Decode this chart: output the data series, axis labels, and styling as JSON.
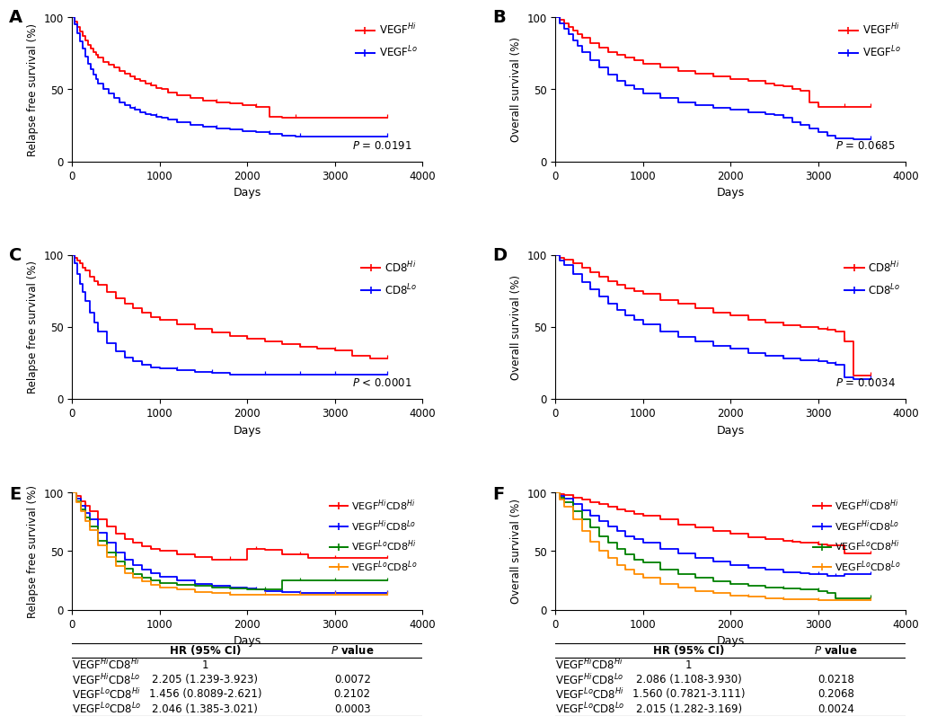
{
  "colors": {
    "red": "#FF0000",
    "blue": "#0000FF",
    "green": "#008000",
    "orange": "#FF8C00"
  },
  "panel_A": {
    "panel_label": "A",
    "ylabel": "Relapse free survival (%)",
    "xlabel": "Days",
    "pvalue": "P = 0.0191",
    "legend_labels": [
      "VEGF$^{Hi}$",
      "VEGF$^{Lo}$"
    ],
    "legend_colors": [
      "red",
      "blue"
    ],
    "ylim": [
      0,
      100
    ],
    "xlim": [
      0,
      4000
    ],
    "xticks": [
      0,
      1000,
      2000,
      3000,
      4000
    ],
    "yticks": [
      0,
      50,
      100
    ],
    "curves": [
      {
        "color": "red",
        "x": [
          0,
          30,
          60,
          90,
          120,
          150,
          180,
          210,
          240,
          270,
          300,
          360,
          420,
          480,
          540,
          600,
          660,
          720,
          780,
          840,
          900,
          960,
          1020,
          1100,
          1200,
          1350,
          1500,
          1650,
          1800,
          1950,
          2100,
          2250,
          2400,
          2550,
          2700,
          3000,
          3300,
          3600
        ],
        "y": [
          100,
          97,
          93,
          90,
          87,
          84,
          81,
          78,
          76,
          74,
          72,
          69,
          67,
          65,
          63,
          61,
          59,
          57,
          56,
          54,
          53,
          51,
          50,
          48,
          46,
          44,
          42,
          41,
          40,
          39,
          38,
          31,
          30,
          30,
          30,
          30,
          30,
          30
        ]
      },
      {
        "color": "blue",
        "x": [
          0,
          30,
          60,
          90,
          120,
          150,
          180,
          210,
          240,
          270,
          300,
          360,
          420,
          480,
          540,
          600,
          660,
          720,
          780,
          840,
          900,
          960,
          1020,
          1100,
          1200,
          1350,
          1500,
          1650,
          1800,
          1950,
          2100,
          2250,
          2400,
          2550,
          2600,
          2700,
          2800,
          3000,
          3600
        ],
        "y": [
          100,
          95,
          89,
          83,
          78,
          73,
          68,
          64,
          60,
          57,
          54,
          50,
          47,
          44,
          41,
          39,
          37,
          36,
          34,
          33,
          32,
          31,
          30,
          29,
          27,
          25,
          24,
          23,
          22,
          21,
          20,
          19,
          18,
          17,
          17,
          17,
          17,
          17,
          17
        ]
      }
    ]
  },
  "panel_B": {
    "panel_label": "B",
    "ylabel": "Overall survival (%)",
    "xlabel": "Days",
    "pvalue": "P = 0.0685",
    "legend_labels": [
      "VEGF$^{Hi}$",
      "VEGF$^{Lo}$"
    ],
    "legend_colors": [
      "red",
      "blue"
    ],
    "ylim": [
      0,
      100
    ],
    "xlim": [
      0,
      4000
    ],
    "xticks": [
      0,
      1000,
      2000,
      3000,
      4000
    ],
    "yticks": [
      0,
      50,
      100
    ],
    "curves": [
      {
        "color": "red",
        "x": [
          0,
          50,
          100,
          150,
          200,
          250,
          300,
          400,
          500,
          600,
          700,
          800,
          900,
          1000,
          1200,
          1400,
          1600,
          1800,
          2000,
          2200,
          2400,
          2500,
          2600,
          2700,
          2800,
          2900,
          3000,
          3100,
          3200,
          3300,
          3400,
          3500,
          3600
        ],
        "y": [
          100,
          98,
          96,
          93,
          91,
          88,
          86,
          82,
          79,
          76,
          74,
          72,
          70,
          68,
          65,
          63,
          61,
          59,
          57,
          56,
          54,
          53,
          52,
          50,
          49,
          41,
          38,
          38,
          38,
          38,
          38,
          38,
          38
        ]
      },
      {
        "color": "blue",
        "x": [
          0,
          50,
          100,
          150,
          200,
          250,
          300,
          400,
          500,
          600,
          700,
          800,
          900,
          1000,
          1200,
          1400,
          1600,
          1800,
          2000,
          2200,
          2400,
          2500,
          2600,
          2700,
          2800,
          2900,
          3000,
          3100,
          3200,
          3400,
          3600
        ],
        "y": [
          100,
          96,
          92,
          88,
          84,
          80,
          76,
          70,
          65,
          60,
          56,
          53,
          50,
          47,
          44,
          41,
          39,
          37,
          36,
          34,
          33,
          32,
          30,
          27,
          25,
          23,
          20,
          18,
          16,
          15,
          15
        ]
      }
    ]
  },
  "panel_C": {
    "panel_label": "C",
    "ylabel": "Relapse free survival (%)",
    "xlabel": "Days",
    "pvalue": "P < 0.0001",
    "legend_labels": [
      "CD8$^{Hi}$",
      "CD8$^{Lo}$"
    ],
    "legend_colors": [
      "red",
      "blue"
    ],
    "ylim": [
      0,
      100
    ],
    "xlim": [
      0,
      4000
    ],
    "xticks": [
      0,
      1000,
      2000,
      3000,
      4000
    ],
    "yticks": [
      0,
      50,
      100
    ],
    "curves": [
      {
        "color": "red",
        "x": [
          0,
          30,
          60,
          90,
          120,
          150,
          200,
          250,
          300,
          400,
          500,
          600,
          700,
          800,
          900,
          1000,
          1200,
          1400,
          1600,
          1800,
          2000,
          2200,
          2400,
          2600,
          2800,
          3000,
          3200,
          3400,
          3600
        ],
        "y": [
          100,
          98,
          96,
          94,
          91,
          89,
          85,
          82,
          79,
          74,
          70,
          66,
          63,
          60,
          57,
          55,
          52,
          49,
          46,
          44,
          42,
          40,
          38,
          36,
          35,
          34,
          30,
          28,
          28
        ]
      },
      {
        "color": "blue",
        "x": [
          0,
          30,
          60,
          90,
          120,
          150,
          200,
          250,
          300,
          400,
          500,
          600,
          700,
          800,
          900,
          1000,
          1200,
          1400,
          1600,
          1800,
          2000,
          2200,
          2400,
          2600,
          2700,
          2800,
          3000,
          3200,
          3400,
          3600
        ],
        "y": [
          100,
          94,
          87,
          80,
          74,
          68,
          60,
          53,
          47,
          39,
          33,
          29,
          26,
          24,
          22,
          21,
          20,
          19,
          18,
          17,
          17,
          17,
          17,
          17,
          17,
          17,
          17,
          17,
          17,
          17
        ]
      }
    ]
  },
  "panel_D": {
    "panel_label": "D",
    "ylabel": "Overall survival (%)",
    "xlabel": "Days",
    "pvalue": "P = 0.0034",
    "legend_labels": [
      "CD8$^{Hi}$",
      "CD8$^{Lo}$"
    ],
    "legend_colors": [
      "red",
      "blue"
    ],
    "ylim": [
      0,
      100
    ],
    "xlim": [
      0,
      4000
    ],
    "xticks": [
      0,
      1000,
      2000,
      3000,
      4000
    ],
    "yticks": [
      0,
      50,
      100
    ],
    "curves": [
      {
        "color": "red",
        "x": [
          0,
          50,
          100,
          200,
          300,
          400,
          500,
          600,
          700,
          800,
          900,
          1000,
          1200,
          1400,
          1600,
          1800,
          2000,
          2200,
          2400,
          2600,
          2800,
          3000,
          3100,
          3200,
          3300,
          3400,
          3500,
          3600
        ],
        "y": [
          100,
          98,
          97,
          94,
          91,
          88,
          85,
          82,
          79,
          77,
          75,
          73,
          69,
          66,
          63,
          60,
          58,
          55,
          53,
          51,
          50,
          49,
          48,
          47,
          40,
          16,
          16,
          16
        ]
      },
      {
        "color": "blue",
        "x": [
          0,
          50,
          100,
          200,
          300,
          400,
          500,
          600,
          700,
          800,
          900,
          1000,
          1200,
          1400,
          1600,
          1800,
          2000,
          2200,
          2400,
          2600,
          2800,
          3000,
          3100,
          3200,
          3300,
          3400,
          3600
        ],
        "y": [
          100,
          96,
          93,
          87,
          81,
          76,
          71,
          66,
          62,
          58,
          55,
          52,
          47,
          43,
          40,
          37,
          35,
          32,
          30,
          28,
          27,
          26,
          25,
          24,
          15,
          14,
          14
        ]
      }
    ]
  },
  "panel_E": {
    "panel_label": "E",
    "ylabel": "Relapse free survival (%)",
    "xlabel": "Days",
    "legend_labels": [
      "VEGF$^{Hi}$CD8$^{Hi}$",
      "VEGF$^{Hi}$CD8$^{Lo}$",
      "VEGF$^{Lo}$CD8$^{Hi}$",
      "VEGF$^{Lo}$CD8$^{Lo}$"
    ],
    "legend_colors": [
      "red",
      "blue",
      "green",
      "orange"
    ],
    "ylim": [
      0,
      100
    ],
    "xlim": [
      0,
      4000
    ],
    "xticks": [
      0,
      1000,
      2000,
      3000,
      4000
    ],
    "yticks": [
      0,
      50,
      100
    ],
    "table_rows": [
      {
        "label": "VEGF$^{Hi}$CD8$^{Hi}$",
        "hr": "1",
        "pval": "",
        "color": "black"
      },
      {
        "label": "VEGF$^{Hi}$CD8$^{Lo}$",
        "hr": "2.205 (1.239-3.923)",
        "pval": "0.0072",
        "color": "black"
      },
      {
        "label": "VEGF$^{Lo}$CD8$^{Hi}$",
        "hr": "1.456 (0.8089-2.621)",
        "pval": "0.2102",
        "color": "black"
      },
      {
        "label": "VEGF$^{Lo}$CD8$^{Lo}$",
        "hr": "2.046 (1.385-3.021)",
        "pval": "0.0003",
        "color": "black"
      }
    ],
    "curves": [
      {
        "color": "red",
        "x": [
          0,
          50,
          100,
          150,
          200,
          300,
          400,
          500,
          600,
          700,
          800,
          900,
          1000,
          1200,
          1400,
          1600,
          1800,
          2000,
          2100,
          2200,
          2300,
          2400,
          2500,
          2600,
          2700,
          2800,
          3000,
          3200,
          3400,
          3600
        ],
        "y": [
          100,
          97,
          93,
          89,
          84,
          77,
          71,
          65,
          60,
          57,
          54,
          52,
          50,
          47,
          45,
          43,
          43,
          52,
          52,
          51,
          51,
          47,
          47,
          47,
          44,
          44,
          44,
          44,
          44,
          44
        ]
      },
      {
        "color": "blue",
        "x": [
          0,
          50,
          100,
          150,
          200,
          300,
          400,
          500,
          600,
          700,
          800,
          900,
          1000,
          1200,
          1400,
          1600,
          1800,
          2000,
          2100,
          2200,
          2300,
          2400,
          2500,
          2600,
          2700,
          2800,
          3000,
          3200,
          3400,
          3600
        ],
        "y": [
          100,
          95,
          89,
          83,
          77,
          66,
          57,
          49,
          43,
          38,
          34,
          31,
          28,
          25,
          22,
          20,
          19,
          18,
          17,
          16,
          16,
          15,
          15,
          14,
          14,
          14,
          14,
          14,
          14,
          14
        ]
      },
      {
        "color": "green",
        "x": [
          0,
          50,
          100,
          150,
          200,
          300,
          400,
          500,
          600,
          700,
          800,
          900,
          1000,
          1200,
          1400,
          1600,
          1800,
          2000,
          2100,
          2200,
          2400,
          2600,
          2800,
          3000,
          3200,
          3400,
          3600
        ],
        "y": [
          100,
          93,
          86,
          79,
          71,
          59,
          49,
          41,
          35,
          30,
          27,
          25,
          23,
          21,
          20,
          19,
          18,
          17,
          17,
          17,
          25,
          25,
          25,
          25,
          25,
          25,
          25
        ]
      },
      {
        "color": "orange",
        "x": [
          0,
          50,
          100,
          150,
          200,
          300,
          400,
          500,
          600,
          700,
          800,
          900,
          1000,
          1200,
          1400,
          1600,
          1800,
          2000,
          2100,
          2200,
          2400,
          2600,
          2800,
          3000,
          3200,
          3400,
          3600
        ],
        "y": [
          100,
          92,
          84,
          76,
          68,
          55,
          45,
          37,
          31,
          27,
          24,
          21,
          19,
          17,
          15,
          14,
          13,
          13,
          13,
          13,
          13,
          13,
          13,
          13,
          13,
          13,
          13
        ]
      }
    ]
  },
  "panel_F": {
    "panel_label": "F",
    "ylabel": "Overall survival (%)",
    "xlabel": "Days",
    "legend_labels": [
      "VEGF$^{Hi}$CD8$^{Hi}$",
      "VEGF$^{Hi}$CD8$^{Lo}$",
      "VEGF$^{Lo}$CD8$^{Hi}$",
      "VEGF$^{Lo}$CD8$^{Lo}$"
    ],
    "legend_colors": [
      "red",
      "blue",
      "green",
      "orange"
    ],
    "ylim": [
      0,
      100
    ],
    "xlim": [
      0,
      4000
    ],
    "xticks": [
      0,
      1000,
      2000,
      3000,
      4000
    ],
    "yticks": [
      0,
      50,
      100
    ],
    "table_rows": [
      {
        "label": "VEGF$^{Hi}$CD8$^{Hi}$",
        "hr": "1",
        "pval": "",
        "color": "black"
      },
      {
        "label": "VEGF$^{Hi}$CD8$^{Lo}$",
        "hr": "2.086 (1.108-3.930)",
        "pval": "0.0218",
        "color": "black"
      },
      {
        "label": "VEGF$^{Lo}$CD8$^{Hi}$",
        "hr": "1.560 (0.7821-3.111)",
        "pval": "0.2068",
        "color": "black"
      },
      {
        "label": "VEGF$^{Lo}$CD8$^{Lo}$",
        "hr": "2.015 (1.282-3.169)",
        "pval": "0.0024",
        "color": "black"
      }
    ],
    "curves": [
      {
        "color": "red",
        "x": [
          0,
          50,
          100,
          200,
          300,
          400,
          500,
          600,
          700,
          800,
          900,
          1000,
          1200,
          1400,
          1600,
          1800,
          2000,
          2200,
          2400,
          2500,
          2600,
          2700,
          2800,
          3000,
          3100,
          3200,
          3300,
          3400,
          3500,
          3600
        ],
        "y": [
          100,
          99,
          98,
          96,
          94,
          92,
          90,
          88,
          86,
          84,
          82,
          80,
          77,
          73,
          70,
          67,
          65,
          62,
          60,
          60,
          59,
          58,
          57,
          56,
          55,
          55,
          48,
          48,
          48,
          48
        ]
      },
      {
        "color": "blue",
        "x": [
          0,
          50,
          100,
          200,
          300,
          400,
          500,
          600,
          700,
          800,
          900,
          1000,
          1200,
          1400,
          1600,
          1800,
          2000,
          2200,
          2400,
          2600,
          2800,
          2900,
          3000,
          3100,
          3200,
          3300,
          3400,
          3600
        ],
        "y": [
          100,
          97,
          95,
          90,
          85,
          80,
          76,
          71,
          67,
          63,
          60,
          57,
          52,
          48,
          44,
          41,
          38,
          36,
          34,
          32,
          31,
          30,
          30,
          29,
          29,
          30,
          30,
          30
        ]
      },
      {
        "color": "green",
        "x": [
          0,
          50,
          100,
          200,
          300,
          400,
          500,
          600,
          700,
          800,
          900,
          1000,
          1200,
          1400,
          1600,
          1800,
          2000,
          2200,
          2400,
          2600,
          2800,
          3000,
          3100,
          3200,
          3300,
          3400,
          3600
        ],
        "y": [
          100,
          96,
          92,
          84,
          77,
          70,
          63,
          57,
          52,
          47,
          43,
          40,
          34,
          30,
          27,
          24,
          22,
          20,
          19,
          18,
          17,
          16,
          14,
          10,
          10,
          10,
          10
        ]
      },
      {
        "color": "orange",
        "x": [
          0,
          50,
          100,
          200,
          300,
          400,
          500,
          600,
          700,
          800,
          900,
          1000,
          1200,
          1400,
          1600,
          1800,
          2000,
          2200,
          2400,
          2600,
          2800,
          3000,
          3200,
          3400,
          3600
        ],
        "y": [
          100,
          94,
          88,
          77,
          67,
          58,
          50,
          44,
          38,
          34,
          30,
          27,
          22,
          19,
          16,
          14,
          12,
          11,
          10,
          9,
          9,
          8,
          8,
          8,
          8
        ]
      }
    ]
  }
}
